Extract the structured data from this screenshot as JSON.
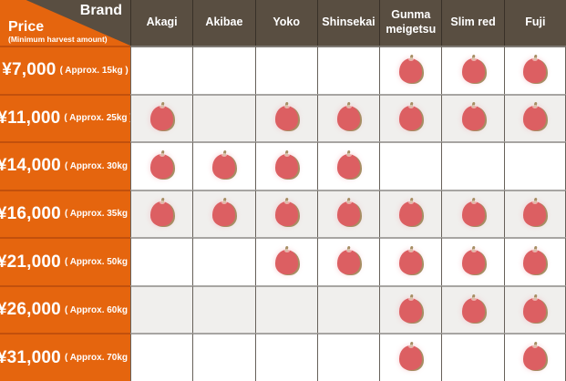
{
  "corner": {
    "brand_label": "Brand",
    "price_label": "Price",
    "price_sublabel": "(Minimum harvest amount)"
  },
  "chart_data": {
    "type": "table",
    "columns": [
      "Akagi",
      "Akibae",
      "Yoko",
      "Shinsekai",
      "Gunma meigetsu",
      "Slim red",
      "Fuji"
    ],
    "rows": [
      {
        "price": "¥7,000",
        "amount": "( Approx. 15kg )",
        "available": [
          0,
          0,
          0,
          0,
          1,
          1,
          1
        ]
      },
      {
        "price": "¥11,000",
        "amount": "( Approx. 25kg )",
        "available": [
          1,
          0,
          1,
          1,
          1,
          1,
          1
        ]
      },
      {
        "price": "¥14,000",
        "amount": "( Approx. 30kg )",
        "available": [
          1,
          1,
          1,
          1,
          0,
          0,
          0
        ]
      },
      {
        "price": "¥16,000",
        "amount": "( Approx. 35kg )",
        "available": [
          1,
          1,
          1,
          1,
          1,
          1,
          1
        ]
      },
      {
        "price": "¥21,000",
        "amount": "( Approx. 50kg )",
        "available": [
          0,
          0,
          1,
          1,
          1,
          1,
          1
        ]
      },
      {
        "price": "¥26,000",
        "amount": "( Approx. 60kg )",
        "available": [
          0,
          0,
          0,
          0,
          1,
          1,
          1
        ]
      },
      {
        "price": "¥31,000",
        "amount": "( Approx. 70kg )",
        "available": [
          0,
          0,
          0,
          0,
          1,
          0,
          1
        ]
      }
    ],
    "legend": "apple icon = brand available at this price / minimum harvest amount",
    "icon": "apple-icon"
  },
  "colors": {
    "orange": "#e5650e",
    "header_brown": "#594e41",
    "apple_red": "#dc5f62",
    "apple_olive": "#a68e63",
    "row_alt_gray": "#f0efed"
  }
}
